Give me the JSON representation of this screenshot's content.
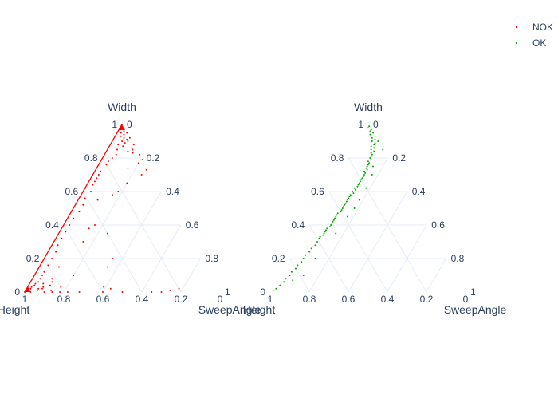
{
  "legend": {
    "items": [
      {
        "name": "NOK",
        "color": "#ff0000"
      },
      {
        "name": "OK",
        "color": "#00aa00"
      }
    ]
  },
  "chart_data": [
    {
      "type": "scatter",
      "subtype": "ternary",
      "name": "NOK",
      "color": "#ff0000",
      "axes": {
        "a": "Width",
        "b": "Height",
        "c": "SweepAngle"
      },
      "ticks": [
        "0",
        "0.2",
        "0.4",
        "0.6",
        "0.8",
        "1"
      ],
      "grid": true,
      "points": [
        [
          1.0,
          0.0,
          0.0
        ],
        [
          0.98,
          0.01,
          0.01
        ],
        [
          0.97,
          0.02,
          0.01
        ],
        [
          0.96,
          0.01,
          0.03
        ],
        [
          0.95,
          0.03,
          0.02
        ],
        [
          0.94,
          0.02,
          0.04
        ],
        [
          0.93,
          0.04,
          0.03
        ],
        [
          0.92,
          0.03,
          0.05
        ],
        [
          0.91,
          0.02,
          0.07
        ],
        [
          0.9,
          0.05,
          0.05
        ],
        [
          0.89,
          0.04,
          0.07
        ],
        [
          0.88,
          0.08,
          0.04
        ],
        [
          0.87,
          0.06,
          0.07
        ],
        [
          0.86,
          0.02,
          0.12
        ],
        [
          0.85,
          0.1,
          0.05
        ],
        [
          0.84,
          0.05,
          0.11
        ],
        [
          0.83,
          0.03,
          0.14
        ],
        [
          0.82,
          0.12,
          0.06
        ],
        [
          0.8,
          0.15,
          0.05
        ],
        [
          0.78,
          0.18,
          0.04
        ],
        [
          0.76,
          0.2,
          0.04
        ],
        [
          0.74,
          0.1,
          0.16
        ],
        [
          0.72,
          0.25,
          0.03
        ],
        [
          0.7,
          0.27,
          0.03
        ],
        [
          0.68,
          0.29,
          0.03
        ],
        [
          0.66,
          0.31,
          0.03
        ],
        [
          0.64,
          0.33,
          0.03
        ],
        [
          0.6,
          0.36,
          0.04
        ],
        [
          0.56,
          0.41,
          0.03
        ],
        [
          0.52,
          0.44,
          0.04
        ],
        [
          0.48,
          0.48,
          0.04
        ],
        [
          0.44,
          0.53,
          0.03
        ],
        [
          0.4,
          0.57,
          0.03
        ],
        [
          0.36,
          0.61,
          0.03
        ],
        [
          0.32,
          0.65,
          0.03
        ],
        [
          0.28,
          0.69,
          0.03
        ],
        [
          0.24,
          0.72,
          0.04
        ],
        [
          0.2,
          0.76,
          0.04
        ],
        [
          0.16,
          0.8,
          0.04
        ],
        [
          0.12,
          0.84,
          0.04
        ],
        [
          0.1,
          0.86,
          0.04
        ],
        [
          0.08,
          0.88,
          0.04
        ],
        [
          0.06,
          0.9,
          0.04
        ],
        [
          0.05,
          0.92,
          0.03
        ],
        [
          0.04,
          0.93,
          0.03
        ],
        [
          0.03,
          0.95,
          0.02
        ],
        [
          0.02,
          0.96,
          0.02
        ],
        [
          0.01,
          0.98,
          0.01
        ],
        [
          0.0,
          1.0,
          0.0
        ],
        [
          0.0,
          0.97,
          0.03
        ],
        [
          0.02,
          0.92,
          0.06
        ],
        [
          0.01,
          0.93,
          0.06
        ],
        [
          0.03,
          0.89,
          0.08
        ],
        [
          0.05,
          0.88,
          0.07
        ],
        [
          0.02,
          0.9,
          0.08
        ],
        [
          0.04,
          0.85,
          0.11
        ],
        [
          0.06,
          0.83,
          0.11
        ],
        [
          0.01,
          0.86,
          0.13
        ],
        [
          0.08,
          0.82,
          0.1
        ],
        [
          0.03,
          0.8,
          0.17
        ],
        [
          0.0,
          0.9,
          0.1
        ],
        [
          0.0,
          0.86,
          0.14
        ],
        [
          0.0,
          0.82,
          0.18
        ],
        [
          0.0,
          0.78,
          0.22
        ],
        [
          0.0,
          0.72,
          0.28
        ],
        [
          0.0,
          0.6,
          0.4
        ],
        [
          0.0,
          0.5,
          0.5
        ],
        [
          0.0,
          0.35,
          0.65
        ],
        [
          0.0,
          0.3,
          0.7
        ],
        [
          0.01,
          0.25,
          0.74
        ],
        [
          0.02,
          0.2,
          0.78
        ],
        [
          0.02,
          0.55,
          0.43
        ],
        [
          0.03,
          0.58,
          0.39
        ],
        [
          0.1,
          0.7,
          0.2
        ],
        [
          0.15,
          0.75,
          0.1
        ],
        [
          0.15,
          0.5,
          0.35
        ],
        [
          0.2,
          0.45,
          0.35
        ],
        [
          0.3,
          0.55,
          0.15
        ],
        [
          0.35,
          0.4,
          0.25
        ],
        [
          0.38,
          0.48,
          0.14
        ],
        [
          0.4,
          0.44,
          0.16
        ],
        [
          0.55,
          0.35,
          0.1
        ],
        [
          0.58,
          0.26,
          0.16
        ],
        [
          0.6,
          0.22,
          0.18
        ],
        [
          0.62,
          0.38,
          0.0
        ],
        [
          0.65,
          0.15,
          0.2
        ],
        [
          0.7,
          0.05,
          0.25
        ],
        [
          0.73,
          0.01,
          0.26
        ],
        [
          0.77,
          0.03,
          0.2
        ],
        [
          0.79,
          0.0,
          0.21
        ],
        [
          0.82,
          0.0,
          0.18
        ],
        [
          0.88,
          0.0,
          0.12
        ],
        [
          0.9,
          0.02,
          0.08
        ],
        [
          0.85,
          0.02,
          0.13
        ],
        [
          0.92,
          0.0,
          0.08
        ],
        [
          0.95,
          0.0,
          0.05
        ]
      ]
    },
    {
      "type": "scatter",
      "subtype": "ternary",
      "name": "OK",
      "color": "#00aa00",
      "axes": {
        "a": "Width",
        "b": "Height",
        "c": "SweepAngle"
      },
      "ticks": [
        "0",
        "0.2",
        "0.4",
        "0.6",
        "0.8",
        "1"
      ],
      "grid": true,
      "points": [
        [
          0.99,
          0.0,
          0.01
        ],
        [
          0.98,
          0.01,
          0.01
        ],
        [
          0.97,
          0.0,
          0.03
        ],
        [
          0.96,
          0.01,
          0.03
        ],
        [
          0.95,
          0.0,
          0.05
        ],
        [
          0.94,
          0.02,
          0.04
        ],
        [
          0.93,
          0.0,
          0.07
        ],
        [
          0.92,
          0.02,
          0.06
        ],
        [
          0.91,
          0.01,
          0.08
        ],
        [
          0.9,
          0.03,
          0.07
        ],
        [
          0.89,
          0.02,
          0.09
        ],
        [
          0.88,
          0.03,
          0.09
        ],
        [
          0.87,
          0.05,
          0.08
        ],
        [
          0.86,
          0.04,
          0.1
        ],
        [
          0.85,
          0.06,
          0.09
        ],
        [
          0.84,
          0.05,
          0.11
        ],
        [
          0.83,
          0.07,
          0.1
        ],
        [
          0.82,
          0.07,
          0.11
        ],
        [
          0.81,
          0.08,
          0.11
        ],
        [
          0.8,
          0.09,
          0.11
        ],
        [
          0.79,
          0.09,
          0.12
        ],
        [
          0.78,
          0.11,
          0.11
        ],
        [
          0.77,
          0.11,
          0.12
        ],
        [
          0.76,
          0.12,
          0.12
        ],
        [
          0.75,
          0.13,
          0.12
        ],
        [
          0.74,
          0.14,
          0.12
        ],
        [
          0.73,
          0.14,
          0.13
        ],
        [
          0.72,
          0.16,
          0.12
        ],
        [
          0.71,
          0.16,
          0.13
        ],
        [
          0.7,
          0.17,
          0.13
        ],
        [
          0.69,
          0.18,
          0.13
        ],
        [
          0.68,
          0.19,
          0.13
        ],
        [
          0.67,
          0.2,
          0.13
        ],
        [
          0.66,
          0.21,
          0.13
        ],
        [
          0.65,
          0.22,
          0.13
        ],
        [
          0.64,
          0.23,
          0.13
        ],
        [
          0.63,
          0.24,
          0.13
        ],
        [
          0.62,
          0.26,
          0.12
        ],
        [
          0.61,
          0.26,
          0.13
        ],
        [
          0.6,
          0.28,
          0.12
        ],
        [
          0.59,
          0.28,
          0.13
        ],
        [
          0.58,
          0.3,
          0.12
        ],
        [
          0.57,
          0.31,
          0.12
        ],
        [
          0.56,
          0.32,
          0.12
        ],
        [
          0.55,
          0.33,
          0.12
        ],
        [
          0.54,
          0.34,
          0.12
        ],
        [
          0.53,
          0.35,
          0.12
        ],
        [
          0.52,
          0.36,
          0.12
        ],
        [
          0.51,
          0.37,
          0.12
        ],
        [
          0.5,
          0.38,
          0.12
        ],
        [
          0.49,
          0.39,
          0.12
        ],
        [
          0.48,
          0.4,
          0.12
        ],
        [
          0.47,
          0.42,
          0.11
        ],
        [
          0.46,
          0.43,
          0.11
        ],
        [
          0.45,
          0.44,
          0.11
        ],
        [
          0.44,
          0.45,
          0.11
        ],
        [
          0.43,
          0.46,
          0.11
        ],
        [
          0.42,
          0.47,
          0.11
        ],
        [
          0.41,
          0.48,
          0.11
        ],
        [
          0.4,
          0.49,
          0.11
        ],
        [
          0.39,
          0.5,
          0.11
        ],
        [
          0.38,
          0.52,
          0.1
        ],
        [
          0.37,
          0.53,
          0.1
        ],
        [
          0.36,
          0.54,
          0.1
        ],
        [
          0.35,
          0.55,
          0.1
        ],
        [
          0.34,
          0.56,
          0.1
        ],
        [
          0.33,
          0.58,
          0.09
        ],
        [
          0.32,
          0.59,
          0.09
        ],
        [
          0.3,
          0.61,
          0.09
        ],
        [
          0.28,
          0.63,
          0.09
        ],
        [
          0.26,
          0.66,
          0.08
        ],
        [
          0.24,
          0.68,
          0.08
        ],
        [
          0.22,
          0.71,
          0.07
        ],
        [
          0.2,
          0.73,
          0.07
        ],
        [
          0.18,
          0.75,
          0.07
        ],
        [
          0.16,
          0.78,
          0.06
        ],
        [
          0.14,
          0.8,
          0.06
        ],
        [
          0.12,
          0.83,
          0.05
        ],
        [
          0.1,
          0.85,
          0.05
        ],
        [
          0.08,
          0.88,
          0.04
        ],
        [
          0.06,
          0.9,
          0.04
        ],
        [
          0.04,
          0.93,
          0.03
        ],
        [
          0.02,
          0.96,
          0.02
        ],
        [
          0.01,
          0.98,
          0.01
        ],
        [
          0.85,
          0.0,
          0.15
        ],
        [
          0.75,
          0.1,
          0.15
        ],
        [
          0.62,
          0.2,
          0.18
        ],
        [
          0.55,
          0.27,
          0.18
        ],
        [
          0.45,
          0.38,
          0.17
        ],
        [
          0.35,
          0.49,
          0.16
        ],
        [
          0.2,
          0.67,
          0.13
        ],
        [
          0.1,
          0.78,
          0.12
        ],
        [
          0.07,
          0.85,
          0.08
        ],
        [
          0.9,
          0.0,
          0.1
        ],
        [
          0.7,
          0.13,
          0.17
        ],
        [
          0.5,
          0.32,
          0.18
        ]
      ]
    }
  ]
}
